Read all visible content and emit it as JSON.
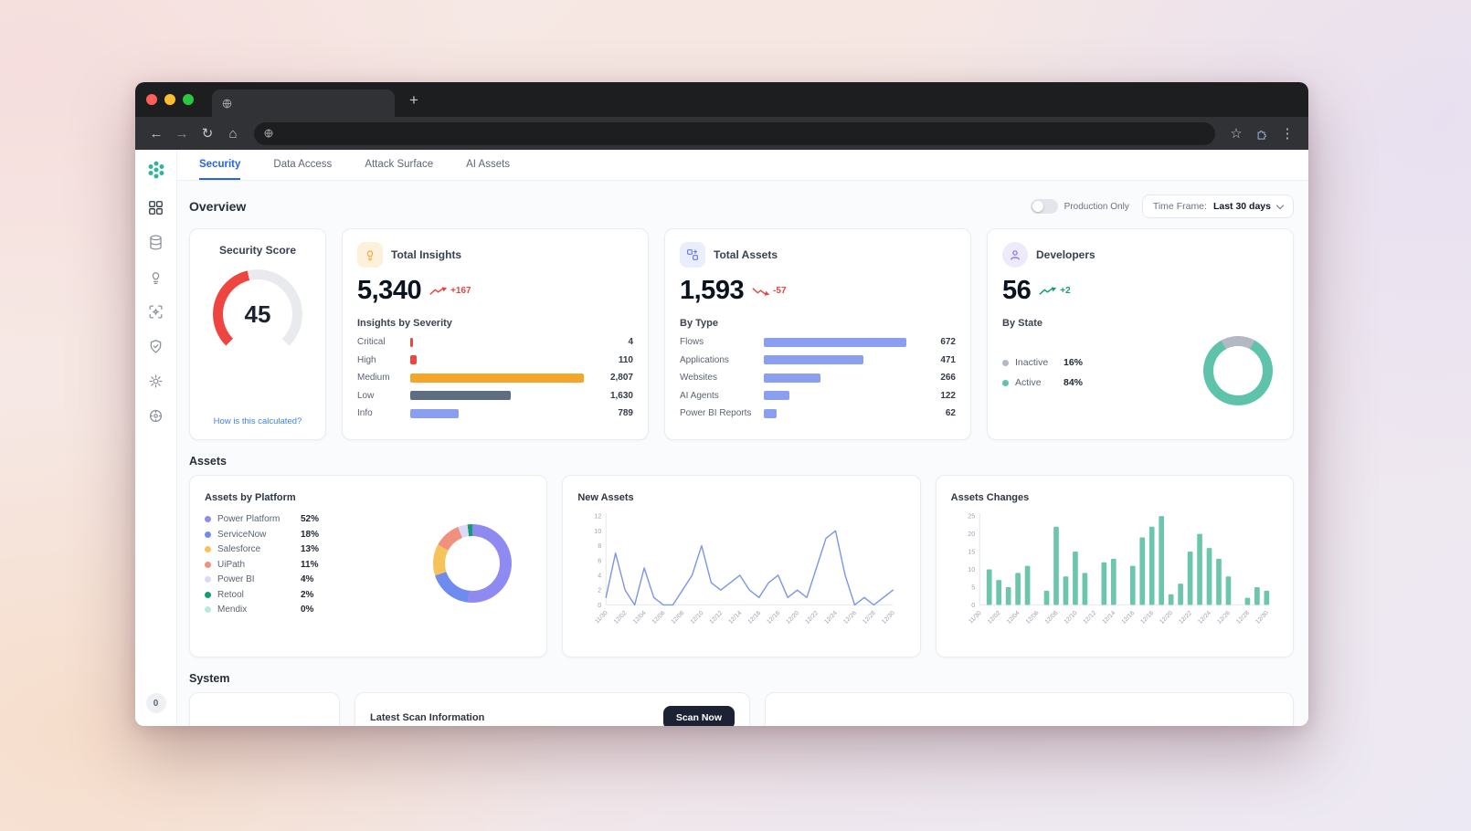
{
  "browser": {
    "icons": {
      "back": "←",
      "forward": "→",
      "reload": "↻",
      "home": "⌂",
      "star": "☆",
      "menu": "⋮",
      "new_tab": "+"
    }
  },
  "app_tabs": [
    {
      "label": "Security",
      "active": true
    },
    {
      "label": "Data Access",
      "active": false
    },
    {
      "label": "Attack Surface",
      "active": false
    },
    {
      "label": "AI Assets",
      "active": false
    }
  ],
  "sidebar": {
    "badge": "0"
  },
  "overview": {
    "title": "Overview",
    "production_only": "Production Only",
    "time_frame_label": "Time Frame:",
    "time_frame_value": "Last 30 days"
  },
  "cards": {
    "security_score": {
      "title": "Security Score",
      "value": 45,
      "max": 100,
      "link": "How is this calculated?",
      "arc_color": "#ee4540",
      "track_color": "#e8eaee"
    },
    "total_insights": {
      "title": "Total Insights",
      "value": "5,340",
      "delta": "+167",
      "delta_color": "#e5483f",
      "section": "Insights by Severity",
      "rows": [
        {
          "label": "Critical",
          "display": "4",
          "num": 4,
          "color": "#ee4540"
        },
        {
          "label": "High",
          "display": "110",
          "num": 110,
          "color": "#ee4540"
        },
        {
          "label": "Medium",
          "display": "2,807",
          "num": 2807,
          "color": "#f4a62a"
        },
        {
          "label": "Low",
          "display": "1,630",
          "num": 1630,
          "color": "#5e6e82"
        },
        {
          "label": "Info",
          "display": "789",
          "num": 789,
          "color": "#8b9ff0"
        }
      ]
    },
    "total_assets": {
      "title": "Total Assets",
      "value": "1,593",
      "delta": "-57",
      "delta_color": "#e5483f",
      "section": "By Type",
      "rows": [
        {
          "label": "Flows",
          "display": "672",
          "num": 672,
          "color": "#8b9ff0"
        },
        {
          "label": "Applications",
          "display": "471",
          "num": 471,
          "color": "#8b9ff0"
        },
        {
          "label": "Websites",
          "display": "266",
          "num": 266,
          "color": "#8b9ff0"
        },
        {
          "label": "AI Agents",
          "display": "122",
          "num": 122,
          "color": "#8b9ff0"
        },
        {
          "label": "Power BI Reports",
          "display": "62",
          "num": 62,
          "color": "#8b9ff0"
        }
      ]
    },
    "developers": {
      "title": "Developers",
      "value": "56",
      "delta": "+2",
      "delta_color": "#13a06b",
      "section": "By State",
      "legend": [
        {
          "label": "Inactive",
          "display": "16%",
          "pct": 16,
          "color": "#b3b9c2"
        },
        {
          "label": "Active",
          "display": "84%",
          "pct": 84,
          "color": "#5fc3ab"
        }
      ]
    }
  },
  "assets": {
    "title": "Assets",
    "by_platform": {
      "title": "Assets by Platform",
      "legend": [
        {
          "label": "Power Platform",
          "display": "52%",
          "pct": 52,
          "color": "#8f8af2"
        },
        {
          "label": "ServiceNow",
          "display": "18%",
          "pct": 18,
          "color": "#6e8bf0"
        },
        {
          "label": "Salesforce",
          "display": "13%",
          "pct": 13,
          "color": "#f6c25b"
        },
        {
          "label": "UiPath",
          "display": "11%",
          "pct": 11,
          "color": "#f2907f"
        },
        {
          "label": "Power BI",
          "display": "4%",
          "pct": 4,
          "color": "#dcd9f8"
        },
        {
          "label": "Retool",
          "display": "2%",
          "pct": 2,
          "color": "#129d72"
        },
        {
          "label": "Mendix",
          "display": "0%",
          "pct": 0,
          "color": "#b9ead9"
        }
      ]
    },
    "new_assets": {
      "title": "New Assets",
      "type": "line",
      "line_color": "#7b96e8",
      "ymax": 12,
      "yticks": [
        0,
        2,
        4,
        6,
        8,
        10,
        12
      ],
      "x_labels": [
        "11/30",
        "12/02",
        "12/04",
        "12/06",
        "12/08",
        "12/10",
        "12/12",
        "12/14",
        "12/16",
        "12/18",
        "12/20",
        "12/22",
        "12/24",
        "12/26",
        "12/28",
        "12/30"
      ],
      "values": [
        1,
        7,
        2,
        0,
        5,
        1,
        0,
        0,
        2,
        4,
        8,
        3,
        2,
        3,
        4,
        2,
        1,
        3,
        4,
        1,
        2,
        1,
        5,
        9,
        10,
        4,
        0,
        1,
        0,
        1,
        2
      ]
    },
    "assets_changes": {
      "title": "Assets Changes",
      "type": "bar",
      "bar_color": "#6cc5ad",
      "ymax": 25,
      "yticks": [
        0,
        5,
        10,
        15,
        20,
        25
      ],
      "x_labels": [
        "11/30",
        "12/02",
        "12/04",
        "12/06",
        "12/08",
        "12/10",
        "12/12",
        "12/14",
        "12/16",
        "12/18",
        "12/20",
        "12/22",
        "12/24",
        "12/26",
        "12/28",
        "12/30"
      ],
      "values": [
        0,
        10,
        7,
        5,
        9,
        11,
        0,
        4,
        22,
        8,
        15,
        9,
        0,
        12,
        13,
        0,
        11,
        19,
        22,
        25,
        3,
        6,
        15,
        20,
        16,
        13,
        8,
        0,
        2,
        5,
        4
      ]
    }
  },
  "system": {
    "title": "System",
    "latest_scan_title": "Latest Scan Information",
    "scan_button": "Scan Now"
  }
}
